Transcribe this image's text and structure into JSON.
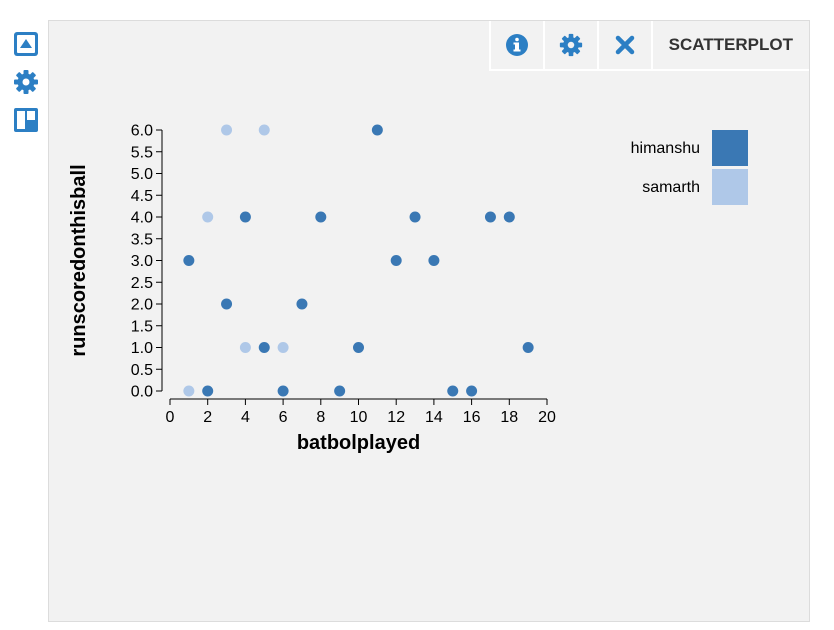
{
  "sidebar": {
    "items": [
      {
        "icon": "collapse-up-icon"
      },
      {
        "icon": "gear-icon"
      },
      {
        "icon": "layout-icon"
      }
    ],
    "accent": "#2c7fc4"
  },
  "toolbar": {
    "buttons": [
      {
        "icon": "info-icon"
      },
      {
        "icon": "gear-icon"
      },
      {
        "icon": "close-icon"
      }
    ],
    "title": "SCATTERPLOT",
    "accent": "#2c7fc4"
  },
  "chart_data": {
    "type": "scatter",
    "xlabel": "batbolplayed",
    "ylabel": "runscoredonthisball",
    "xlim": [
      0,
      20
    ],
    "ylim": [
      0,
      6
    ],
    "x_ticks": [
      "0",
      "2",
      "4",
      "6",
      "8",
      "10",
      "12",
      "14",
      "16",
      "18",
      "20"
    ],
    "y_ticks": [
      "0.0",
      "0.5",
      "1.0",
      "1.5",
      "2.0",
      "2.5",
      "3.0",
      "3.5",
      "4.0",
      "4.5",
      "5.0",
      "5.5",
      "6.0"
    ],
    "grid": false,
    "legend_position": "top-right",
    "series": [
      {
        "name": "himanshu",
        "color": "#3a78b4",
        "points": [
          [
            1,
            3
          ],
          [
            2,
            0
          ],
          [
            3,
            2
          ],
          [
            4,
            4
          ],
          [
            5,
            1
          ],
          [
            6,
            0
          ],
          [
            7,
            2
          ],
          [
            8,
            4
          ],
          [
            9,
            0
          ],
          [
            10,
            1
          ],
          [
            11,
            6
          ],
          [
            12,
            3
          ],
          [
            13,
            4
          ],
          [
            14,
            3
          ],
          [
            15,
            0
          ],
          [
            16,
            0
          ],
          [
            17,
            4
          ],
          [
            18,
            4
          ],
          [
            19,
            1
          ]
        ]
      },
      {
        "name": "samarth",
        "color": "#afc8e8",
        "points": [
          [
            1,
            0
          ],
          [
            2,
            4
          ],
          [
            3,
            6
          ],
          [
            4,
            1
          ],
          [
            5,
            6
          ],
          [
            6,
            1
          ]
        ]
      }
    ]
  }
}
